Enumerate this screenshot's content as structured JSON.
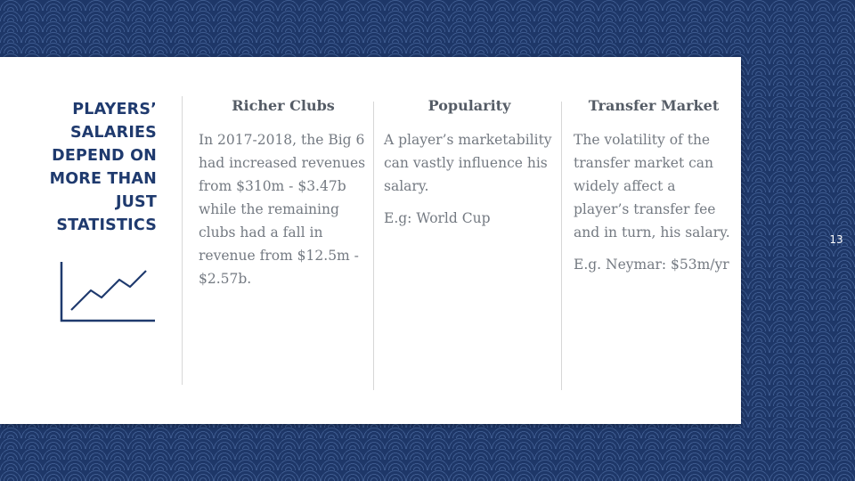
{
  "slide": {
    "title": "Players’ salaries depend on more than just statistics",
    "page_number": "13",
    "accent_color": "#1f3a6e"
  },
  "columns": [
    {
      "heading": "Richer Clubs",
      "paragraphs": [
        "In 2017-2018, the Big 6 had increased revenues from $310m - $3.47b while the remaining clubs had a fall in revenue from $12.5m - $2.57b."
      ]
    },
    {
      "heading": "Popularity",
      "paragraphs": [
        "A player’s marketability can vastly influence his salary.",
        "E.g: World Cup"
      ]
    },
    {
      "heading": "Transfer Market",
      "paragraphs": [
        "The volatility of the transfer market can widely affect a player’s transfer fee and in turn, his salary.",
        "E.g. Neymar: $53m/yr"
      ]
    }
  ],
  "icons": {
    "chart": "line-chart-icon"
  }
}
